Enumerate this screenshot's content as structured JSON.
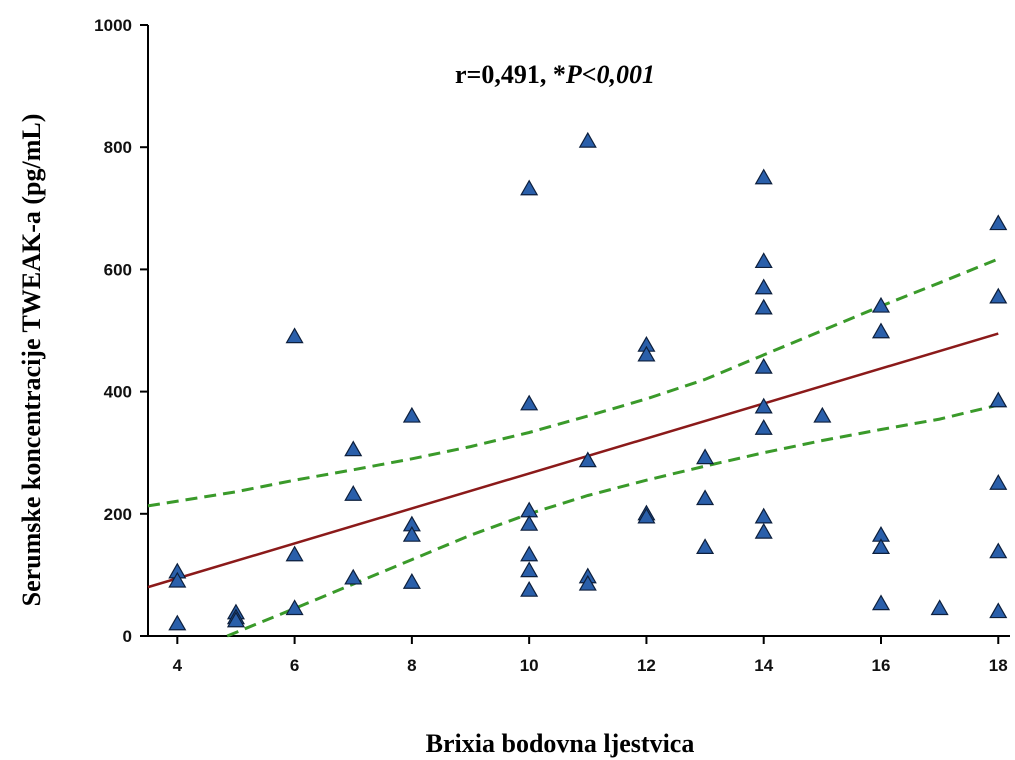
{
  "chart_data": {
    "type": "scatter",
    "xlabel": "Brixia bodovna ljestvica",
    "ylabel": "Serumske koncentracije TWEAK-a (pg/mL)",
    "annotation": {
      "prefix": "r=0,491, *",
      "italic": "P<0,001"
    },
    "xlim": [
      3.5,
      18.2
    ],
    "ylim": [
      0,
      1000
    ],
    "x_ticks": [
      4,
      6,
      8,
      10,
      12,
      14,
      16,
      18
    ],
    "y_ticks": [
      0,
      200,
      400,
      600,
      800,
      1000
    ],
    "grid": false,
    "marker": "triangle",
    "colors": {
      "points": "#2a5faa",
      "point_edge": "#0d1f3c",
      "regression": "#8b1a1a",
      "confidence": "#3a9a2a"
    },
    "points": [
      {
        "x": 4,
        "y": 105
      },
      {
        "x": 4,
        "y": 90
      },
      {
        "x": 4,
        "y": 20
      },
      {
        "x": 5,
        "y": 38
      },
      {
        "x": 5,
        "y": 30
      },
      {
        "x": 5,
        "y": 25
      },
      {
        "x": 6,
        "y": 490
      },
      {
        "x": 6,
        "y": 133
      },
      {
        "x": 6,
        "y": 45
      },
      {
        "x": 7,
        "y": 305
      },
      {
        "x": 7,
        "y": 232
      },
      {
        "x": 7,
        "y": 95
      },
      {
        "x": 8,
        "y": 360
      },
      {
        "x": 8,
        "y": 182
      },
      {
        "x": 8,
        "y": 165
      },
      {
        "x": 8,
        "y": 88
      },
      {
        "x": 10,
        "y": 732
      },
      {
        "x": 10,
        "y": 380
      },
      {
        "x": 10,
        "y": 205
      },
      {
        "x": 10,
        "y": 183
      },
      {
        "x": 10,
        "y": 133
      },
      {
        "x": 10,
        "y": 107
      },
      {
        "x": 10,
        "y": 75
      },
      {
        "x": 11,
        "y": 810
      },
      {
        "x": 11,
        "y": 287
      },
      {
        "x": 11,
        "y": 97
      },
      {
        "x": 11,
        "y": 85
      },
      {
        "x": 12,
        "y": 476
      },
      {
        "x": 12,
        "y": 460
      },
      {
        "x": 12,
        "y": 200
      },
      {
        "x": 12,
        "y": 195
      },
      {
        "x": 13,
        "y": 292
      },
      {
        "x": 13,
        "y": 225
      },
      {
        "x": 13,
        "y": 145
      },
      {
        "x": 14,
        "y": 750
      },
      {
        "x": 14,
        "y": 613
      },
      {
        "x": 14,
        "y": 570
      },
      {
        "x": 14,
        "y": 537
      },
      {
        "x": 14,
        "y": 440
      },
      {
        "x": 14,
        "y": 375
      },
      {
        "x": 14,
        "y": 340
      },
      {
        "x": 14,
        "y": 195
      },
      {
        "x": 14,
        "y": 170
      },
      {
        "x": 15,
        "y": 360
      },
      {
        "x": 16,
        "y": 540
      },
      {
        "x": 16,
        "y": 498
      },
      {
        "x": 16,
        "y": 165
      },
      {
        "x": 16,
        "y": 145
      },
      {
        "x": 16,
        "y": 53
      },
      {
        "x": 17,
        "y": 45
      },
      {
        "x": 18,
        "y": 675
      },
      {
        "x": 18,
        "y": 555
      },
      {
        "x": 18,
        "y": 385
      },
      {
        "x": 18,
        "y": 250
      },
      {
        "x": 18,
        "y": 138
      },
      {
        "x": 18,
        "y": 40
      }
    ],
    "regression_line": [
      {
        "x": 3.5,
        "y": 80
      },
      {
        "x": 18,
        "y": 495
      }
    ],
    "ci_upper": [
      {
        "x": 3.5,
        "y": 213
      },
      {
        "x": 5,
        "y": 236
      },
      {
        "x": 6,
        "y": 255
      },
      {
        "x": 7,
        "y": 272
      },
      {
        "x": 8,
        "y": 290
      },
      {
        "x": 9,
        "y": 310
      },
      {
        "x": 10,
        "y": 333
      },
      {
        "x": 11,
        "y": 360
      },
      {
        "x": 12,
        "y": 388
      },
      {
        "x": 13,
        "y": 420
      },
      {
        "x": 14,
        "y": 460
      },
      {
        "x": 15,
        "y": 500
      },
      {
        "x": 16,
        "y": 540
      },
      {
        "x": 17,
        "y": 578
      },
      {
        "x": 18,
        "y": 617
      }
    ],
    "ci_lower": [
      {
        "x": 4.85,
        "y": 0
      },
      {
        "x": 6,
        "y": 45
      },
      {
        "x": 7,
        "y": 85
      },
      {
        "x": 8,
        "y": 125
      },
      {
        "x": 9,
        "y": 165
      },
      {
        "x": 10,
        "y": 200
      },
      {
        "x": 11,
        "y": 230
      },
      {
        "x": 12,
        "y": 255
      },
      {
        "x": 13,
        "y": 278
      },
      {
        "x": 14,
        "y": 300
      },
      {
        "x": 15,
        "y": 320
      },
      {
        "x": 16,
        "y": 338
      },
      {
        "x": 17,
        "y": 355
      },
      {
        "x": 18,
        "y": 378
      }
    ]
  }
}
